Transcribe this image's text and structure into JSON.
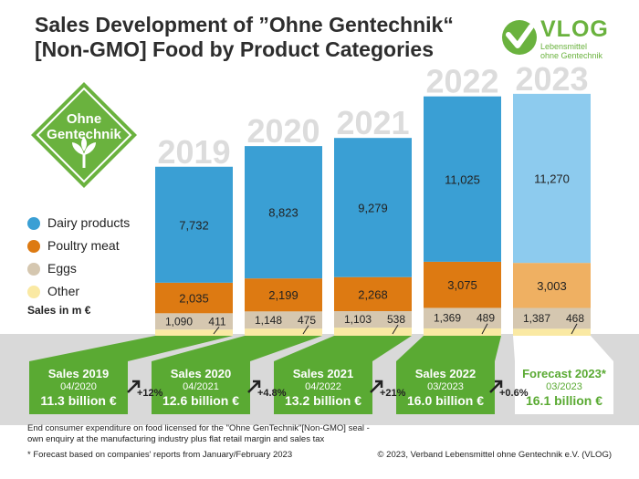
{
  "title_line1": "Sales Development of ”Ohne Gentechnik“",
  "title_line2": "[Non-GMO] Food by Product Categories",
  "logo": {
    "word": "VLOG",
    "sub1": "Lebensmittel",
    "sub2": "ohne Gentechnik"
  },
  "badge": {
    "line1": "Ohne",
    "line2": "Gentechnik"
  },
  "unit_label": "Sales in m €",
  "colors": {
    "dairy": "#3a9fd4",
    "poultry": "#dd7a12",
    "eggs": "#d5c7b0",
    "other": "#fae9a3",
    "dairy_forecast": "#8dcbee",
    "poultry_forecast": "#efb062",
    "green": "#5aaa33"
  },
  "chart_data": {
    "type": "bar",
    "stacked": true,
    "categories": [
      "2019",
      "2020",
      "2021",
      "2022",
      "2023"
    ],
    "series": [
      {
        "name": "Other",
        "values": [
          411,
          475,
          538,
          489,
          468
        ]
      },
      {
        "name": "Eggs",
        "values": [
          1090,
          1148,
          1103,
          1369,
          1387
        ]
      },
      {
        "name": "Poultry meat",
        "values": [
          2035,
          2199,
          2268,
          3075,
          3003
        ]
      },
      {
        "name": "Dairy products",
        "values": [
          7732,
          8823,
          9279,
          11025,
          11270
        ]
      }
    ],
    "legend": [
      "Dairy products",
      "Poultry meat",
      "Eggs",
      "Other"
    ],
    "value_labels": {
      "dairy": [
        "7,732",
        "8,823",
        "9,279",
        "11,025",
        "11,270"
      ],
      "poultry": [
        "2,035",
        "2,199",
        "2,268",
        "3,075",
        "3,003"
      ],
      "eggs": [
        "1,090",
        "1,148",
        "1,103",
        "1,369",
        "1,387"
      ],
      "other": [
        "411",
        "475",
        "538",
        "489",
        "468"
      ]
    },
    "forecast_index": 4,
    "legend_position": "left"
  },
  "sales_boxes": [
    {
      "title": "Sales 2019",
      "date": "04/2020",
      "value": "11.3 billion €"
    },
    {
      "title": "Sales 2020",
      "date": "04/2021",
      "value": "12.6 billion €"
    },
    {
      "title": "Sales 2021",
      "date": "04/2022",
      "value": "13.2 billion €"
    },
    {
      "title": "Sales 2022",
      "date": "03/2023",
      "value": "16.0 billion €"
    },
    {
      "title": "Forecast 2023*",
      "date": "03/2023",
      "value": "16.1 billion €"
    }
  ],
  "growth": [
    "+12%",
    "+4.8%",
    "+21%",
    "+0.6%"
  ],
  "footnote1": "End consumer expenditure on food licensed for the \"Ohne GenTechnik\"[Non-GMO] seal -",
  "footnote2": "own enquiry at the manufacturing industry plus flat retail margin and sales tax",
  "footnote3": "*  Forecast based on companies' reports from January/February 2023",
  "copyright": "© 2023, Verband Lebensmittel ohne Gentechnik e.V. (VLOG)"
}
